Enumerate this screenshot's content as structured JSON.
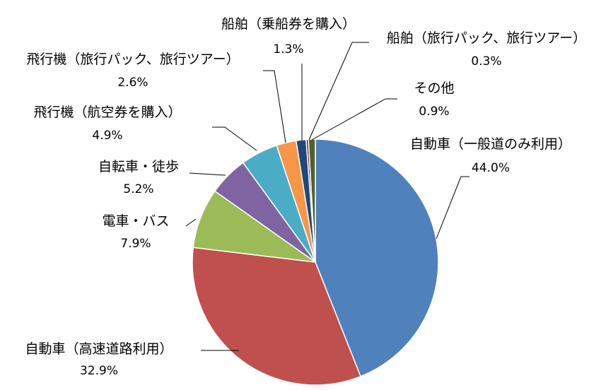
{
  "chart_data": {
    "type": "pie",
    "title": "",
    "slices": [
      {
        "name": "自動車（一般道のみ利用）",
        "value": 44.0,
        "value_label": "44.0%",
        "color": "#4F81BD"
      },
      {
        "name": "自動車（高速道路利用）",
        "value": 32.9,
        "value_label": "32.9%",
        "color": "#C0504D"
      },
      {
        "name": "電車・バス",
        "value": 7.9,
        "value_label": "7.9%",
        "color": "#9BBB59"
      },
      {
        "name": "自転車・徒歩",
        "value": 5.2,
        "value_label": "5.2%",
        "color": "#8064A2"
      },
      {
        "name": "飛行機（航空券を購入）",
        "value": 4.9,
        "value_label": "4.9%",
        "color": "#4BACC6"
      },
      {
        "name": "飛行機（旅行パック、旅行ツアー）",
        "value": 2.6,
        "value_label": "2.6%",
        "color": "#F79646"
      },
      {
        "name": "船舶（乗船券を購入）",
        "value": 1.3,
        "value_label": "1.3%",
        "color": "#1F497D"
      },
      {
        "name": "船舶（旅行パック、旅行ツアー）",
        "value": 0.3,
        "value_label": "0.3%",
        "color": "#7F2B2A"
      },
      {
        "name": "その他",
        "value": 0.9,
        "value_label": "0.9%",
        "color": "#4F6228"
      }
    ],
    "start": "12 o'clock",
    "direction": "clockwise",
    "legend": "none",
    "labels": "outside with leader lines"
  }
}
